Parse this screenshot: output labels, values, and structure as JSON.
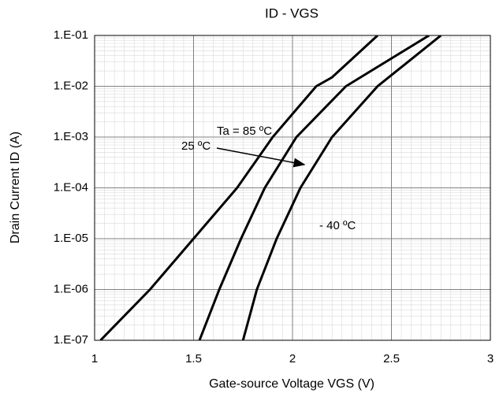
{
  "chart_data": {
    "type": "line",
    "title": "ID - VGS",
    "xlabel": "Gate-source Voltage VGS (V)",
    "ylabel": "Drain Current ID (A)",
    "yscale": "log",
    "grid": true,
    "xlim": [
      1,
      3
    ],
    "xticks": [
      1,
      1.5,
      2,
      2.5,
      3
    ],
    "ylim": [
      1e-07,
      0.1
    ],
    "yticks": [
      {
        "value": 1e-07,
        "label": "1.E-07"
      },
      {
        "value": 1e-06,
        "label": "1.E-06"
      },
      {
        "value": 1e-05,
        "label": "1.E-05"
      },
      {
        "value": 0.0001,
        "label": "1.E-04"
      },
      {
        "value": 0.001,
        "label": "1.E-03"
      },
      {
        "value": 0.01,
        "label": "1.E-02"
      },
      {
        "value": 0.1,
        "label": "1.E-01"
      }
    ],
    "series": [
      {
        "color": "#000000",
        "x": [
          1.03,
          1.28,
          1.5,
          1.72,
          1.9,
          2.12,
          2.2,
          2.43
        ],
        "values": [
          1e-07,
          1e-06,
          1e-05,
          0.0001,
          0.001,
          0.01,
          0.015,
          0.1
        ]
      },
      {
        "color": "#000000",
        "x": [
          1.53,
          1.63,
          1.74,
          1.86,
          2.02,
          2.27,
          2.69
        ],
        "values": [
          1e-07,
          1e-06,
          1e-05,
          0.0001,
          0.001,
          0.01,
          0.1
        ]
      },
      {
        "color": "#000000",
        "x": [
          1.75,
          1.82,
          1.92,
          2.04,
          2.2,
          2.43,
          2.75
        ],
        "values": [
          1e-07,
          1e-06,
          1e-05,
          0.0001,
          0.001,
          0.01,
          0.1
        ]
      }
    ],
    "annotations": [
      "Ta = 85 ºC",
      "25 ºC",
      "- 40 ºC"
    ]
  }
}
